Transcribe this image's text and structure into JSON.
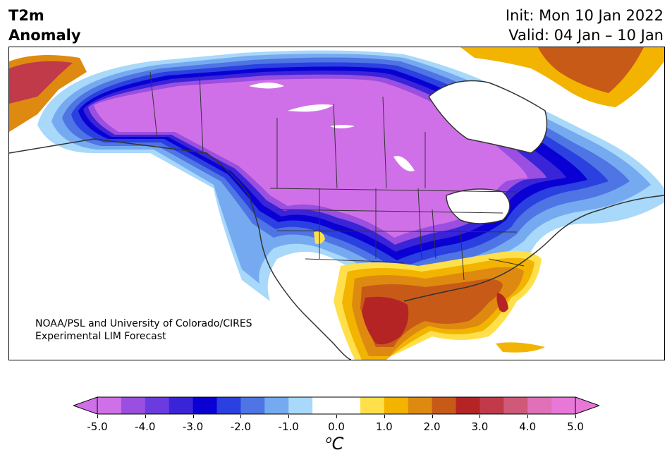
{
  "title": {
    "left_line1": "T2m",
    "left_line2": "Anomaly",
    "right_line1": "Init: Mon 10 Jan 2022",
    "right_line2": "Valid: 04 Jan – 10 Jan"
  },
  "credit": {
    "line1": "NOAA/PSL and University of Colorado/CIRES",
    "line2": "Experimental LIM Forecast"
  },
  "colorbar": {
    "ticks": [
      "-5.0",
      "-4.0",
      "-3.0",
      "-2.0",
      "-1.0",
      "0.0",
      "1.0",
      "2.0",
      "3.0",
      "4.0",
      "5.0"
    ],
    "unit_sup": "o",
    "unit": "C",
    "colors": [
      "#d070e8",
      "#9a4fe0",
      "#6a3ce0",
      "#3a24d8",
      "#0a00d4",
      "#2a40e0",
      "#4f74e4",
      "#76aaf0",
      "#a8d8fa",
      "#ffffff",
      "#ffffff",
      "#ffe04a",
      "#f2b400",
      "#de8a10",
      "#c85a18",
      "#b42424",
      "#c03a4a",
      "#d05878",
      "#e070b8",
      "#e878d8"
    ],
    "extend_low_color": "#d070e8",
    "extend_high_color": "#e878d8"
  },
  "map": {
    "colors": {
      "ocean": "#ffffff",
      "strong_cold": "#d070e8",
      "cold_4": "#9a4fe0",
      "cold_3": "#3a24d8",
      "cold_25": "#0a00d4",
      "cold_2": "#2a40e0",
      "cold_15": "#4f74e4",
      "cold_1": "#76aaf0",
      "cold_05": "#a8d8fa",
      "warm_05": "#ffe04a",
      "warm_1": "#f2b400",
      "warm_2": "#de8a10",
      "warm_25": "#c85a18",
      "warm_3": "#b42424",
      "border": "#333333"
    }
  }
}
